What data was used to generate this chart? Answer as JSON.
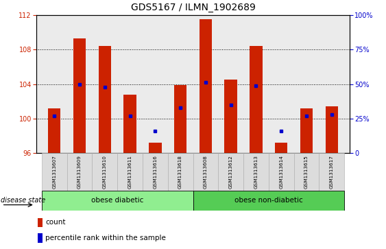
{
  "title": "GDS5167 / ILMN_1902689",
  "samples": [
    "GSM1313607",
    "GSM1313609",
    "GSM1313610",
    "GSM1313611",
    "GSM1313616",
    "GSM1313618",
    "GSM1313608",
    "GSM1313612",
    "GSM1313613",
    "GSM1313614",
    "GSM1313615",
    "GSM1313617"
  ],
  "counts": [
    101.2,
    109.3,
    108.4,
    102.8,
    97.2,
    103.9,
    111.5,
    104.5,
    108.4,
    97.2,
    101.2,
    101.4
  ],
  "percentiles": [
    27,
    50,
    48,
    27,
    16,
    33,
    51,
    35,
    49,
    16,
    27,
    28
  ],
  "ylim_left": [
    96,
    112
  ],
  "ylim_right": [
    0,
    100
  ],
  "yticks_left": [
    96,
    100,
    104,
    108,
    112
  ],
  "yticks_right": [
    0,
    25,
    50,
    75,
    100
  ],
  "bar_color": "#CC2200",
  "dot_color": "#0000CC",
  "bar_width": 0.5,
  "group1_label": "obese diabetic",
  "group2_label": "obese non-diabetic",
  "group1_indices": [
    0,
    1,
    2,
    3,
    4,
    5
  ],
  "group2_indices": [
    6,
    7,
    8,
    9,
    10,
    11
  ],
  "group1_color": "#90EE90",
  "group2_color": "#55CC55",
  "disease_label": "disease state",
  "legend_count_label": "count",
  "legend_pct_label": "percentile rank within the sample",
  "bg_color": "#FFFFFF",
  "plot_bg_color": "#EBEBEB",
  "title_fontsize": 10,
  "tick_fontsize": 7,
  "label_fontsize": 7.5
}
